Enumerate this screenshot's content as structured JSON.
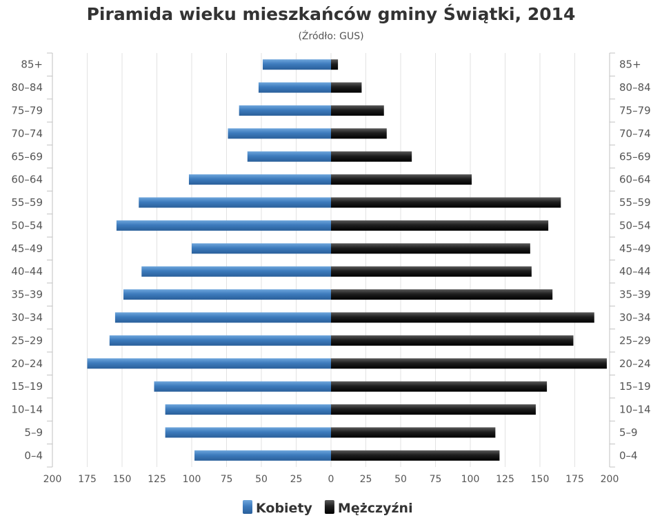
{
  "chart_data": {
    "type": "bar",
    "orientation": "horizontal",
    "layout": "population-pyramid",
    "title": "Piramida wieku mieszkańców gminy Świątki, 2014",
    "subtitle": "(Źródło: GUS)",
    "categories": [
      "85+",
      "80–84",
      "75–79",
      "70–74",
      "65–69",
      "60–64",
      "55–59",
      "50–54",
      "45–49",
      "40–44",
      "35–39",
      "30–34",
      "25–29",
      "20–24",
      "15–19",
      "10–14",
      "5–9",
      "0–4"
    ],
    "series": [
      {
        "name": "Kobiety",
        "side": "left",
        "color": "#3d7bbd",
        "values": [
          49,
          52,
          66,
          74,
          60,
          102,
          138,
          154,
          100,
          136,
          149,
          155,
          159,
          175,
          127,
          119,
          119,
          98
        ]
      },
      {
        "name": "Mężczyźni",
        "side": "right",
        "color": "#1e1e1e",
        "values": [
          5,
          22,
          38,
          40,
          58,
          101,
          165,
          156,
          143,
          144,
          159,
          189,
          174,
          198,
          155,
          147,
          118,
          121
        ]
      }
    ],
    "x_ticks_left": [
      "200",
      "175",
      "150",
      "125",
      "100",
      "75",
      "50",
      "25",
      "0"
    ],
    "x_ticks_right": [
      "25",
      "50",
      "75",
      "100",
      "125",
      "150",
      "175",
      "200"
    ],
    "xlim": [
      0,
      200
    ],
    "grid": true,
    "legend_position": "bottom-center"
  }
}
